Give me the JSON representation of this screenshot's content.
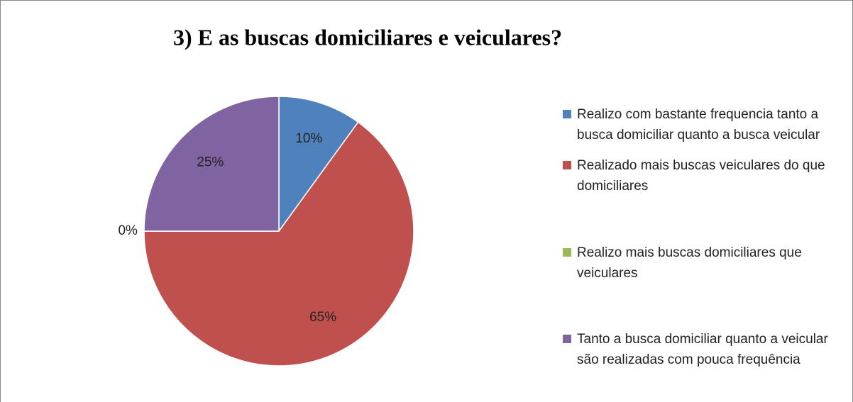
{
  "chart_data": {
    "type": "pie",
    "title": "3) E as buscas domiciliares e veiculares?",
    "categories": [
      "Realizo com bastante frequencia tanto a busca domiciliar quanto a busca veicular",
      "Realizado mais buscas veiculares do que domiciliares",
      "Realizo mais buscas domiciliares que veiculares",
      "Tanto a busca domiciliar quanto a veicular são realizadas com pouca frequência"
    ],
    "values": [
      10,
      65,
      0,
      25
    ],
    "value_labels": [
      "10%",
      "65%",
      "0%",
      "25%"
    ],
    "colors": [
      "#4f81bd",
      "#c0504d",
      "#9bbb59",
      "#8064a2"
    ],
    "legend": "right"
  }
}
